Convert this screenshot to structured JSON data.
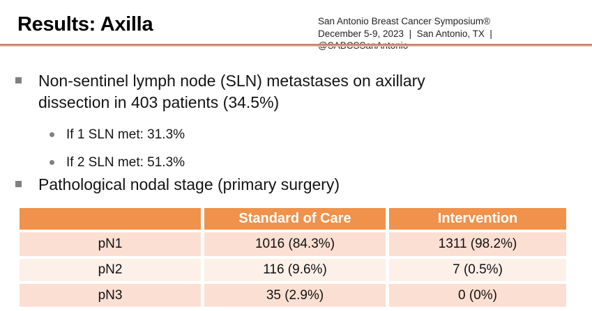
{
  "slide": {
    "title": "Results: Axilla",
    "event": {
      "name": "San Antonio Breast Cancer Symposium®",
      "details": "December 5-9, 2023  |  San Antonio, TX  |  @SABCSSanAntonio"
    }
  },
  "bullets": [
    {
      "level": 1,
      "text": "Non-sentinel lymph node (SLN) metastases on axillary dissection in 403 patients (34.5%)"
    },
    {
      "level": 2,
      "text": "If 1 SLN met: 31.3%"
    },
    {
      "level": 2,
      "text": "If 2 SLN met: 51.3%"
    },
    {
      "level": 1,
      "text": "Pathological nodal stage (primary surgery)"
    }
  ],
  "table": {
    "columns": [
      "",
      "Standard of Care",
      "Intervention"
    ],
    "rows": [
      {
        "label": "pN1",
        "standard_of_care": "1016 (84.3%)",
        "intervention": "1311 (98.2%)"
      },
      {
        "label": "pN2",
        "standard_of_care": "116 (9.6%)",
        "intervention": "7 (0.5%)"
      },
      {
        "label": "pN3",
        "standard_of_care": "35 (2.9%)",
        "intervention": "0 (0%)"
      }
    ]
  },
  "colors": {
    "accent_orange": "#F0924B",
    "row_peach": "#FBDFD2",
    "row_light": "#FDF0E9",
    "divider_dark": "#C8806A",
    "divider_light": "#F2D2C5",
    "bullet_gray": "#808080"
  }
}
